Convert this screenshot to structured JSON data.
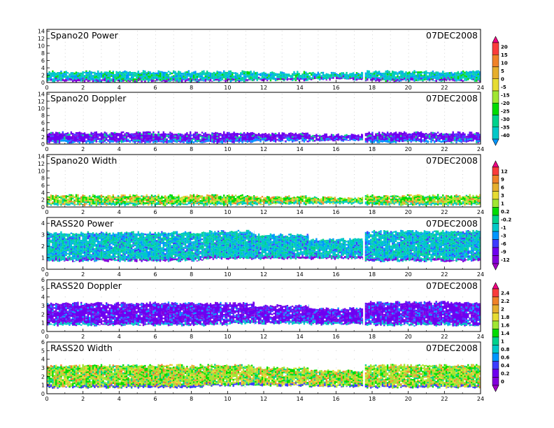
{
  "colormap": [
    "#a000c8",
    "#8200dc",
    "#6e00f0",
    "#3c3cff",
    "#0096ff",
    "#00c8c8",
    "#00d28c",
    "#00dc00",
    "#a0e632",
    "#e6dc32",
    "#e6af2d",
    "#f08228",
    "#fa3c3c",
    "#f00082"
  ],
  "chart_data": [
    {
      "type": "heatmap",
      "title": "Spano20 Power",
      "date": "07DEC2008",
      "xlim": [
        0,
        24
      ],
      "ylim": [
        0,
        14.5
      ],
      "xticks": [
        "0",
        "2",
        "4",
        "6",
        "8",
        "10",
        "12",
        "14",
        "16",
        "18",
        "20",
        "22",
        "24"
      ],
      "yticks": [
        "0",
        "2",
        "4",
        "6",
        "8",
        "10",
        "12",
        "14"
      ],
      "ytick_values": [
        0,
        2,
        4,
        6,
        8,
        10,
        12,
        14
      ],
      "colorbar": [
        "20",
        "15",
        "10",
        "5",
        "0",
        "-5",
        "-15",
        "-20",
        "-25",
        "-30",
        "-35",
        "-40"
      ],
      "segments": [
        [
          0,
          11.5,
          0.3,
          3.0
        ],
        [
          11.5,
          14.5,
          0.6,
          2.8
        ],
        [
          14.5,
          17.5,
          0.8,
          2.6
        ],
        [
          17.6,
          24,
          0.4,
          3.0
        ]
      ],
      "palette": [
        5,
        6,
        5,
        4,
        6,
        5,
        5,
        4,
        7
      ],
      "bottom_index": 1
    },
    {
      "type": "heatmap",
      "title": "Spano20 Doppler",
      "date": "07DEC2008",
      "xlim": [
        0,
        24
      ],
      "ylim": [
        0,
        14.5
      ],
      "xticks": [
        "0",
        "2",
        "4",
        "6",
        "8",
        "10",
        "12",
        "14",
        "16",
        "18",
        "20",
        "22",
        "24"
      ],
      "yticks": [
        "0",
        "2",
        "4",
        "6",
        "8",
        "10",
        "12",
        "14"
      ],
      "ytick_values": [
        0,
        2,
        4,
        6,
        8,
        10,
        12,
        14
      ],
      "segments": [
        [
          0,
          11.5,
          0.4,
          3.2
        ],
        [
          11.5,
          14.5,
          0.7,
          2.9
        ],
        [
          14.5,
          17.5,
          0.9,
          2.6
        ],
        [
          17.6,
          24,
          0.5,
          3.2
        ]
      ],
      "palette": [
        2,
        2,
        2,
        1,
        2,
        2,
        3,
        2,
        6
      ],
      "bottom_index": 4
    },
    {
      "type": "heatmap",
      "title": "Spano20 Width",
      "date": "07DEC2008",
      "xlim": [
        0,
        24
      ],
      "ylim": [
        0,
        14.5
      ],
      "xticks": [
        "0",
        "2",
        "4",
        "6",
        "8",
        "10",
        "12",
        "14",
        "16",
        "18",
        "20",
        "22",
        "24"
      ],
      "yticks": [
        "0",
        "2",
        "4",
        "6",
        "8",
        "10",
        "12",
        "14"
      ],
      "ytick_values": [
        0,
        2,
        4,
        6,
        8,
        10,
        12,
        14
      ],
      "colorbar": [
        "12",
        "9",
        "6",
        "3",
        "1",
        "0.2",
        "-0.2",
        "-1",
        "-3",
        "-6",
        "-9",
        "-12"
      ],
      "segments": [
        [
          0,
          11.5,
          0.5,
          3.2
        ],
        [
          11.5,
          14.5,
          0.7,
          2.9
        ],
        [
          14.5,
          17.5,
          0.9,
          2.6
        ],
        [
          17.6,
          24,
          0.5,
          3.2
        ]
      ],
      "palette": [
        7,
        8,
        9,
        7,
        10,
        8,
        6,
        11,
        7
      ],
      "bottom_index": 5
    },
    {
      "type": "heatmap",
      "title": "RASS20 Power",
      "date": "07DEC2008",
      "xlim": [
        0,
        24
      ],
      "ylim": [
        0,
        4.5
      ],
      "xticks": [
        "0",
        "2",
        "4",
        "6",
        "8",
        "10",
        "12",
        "14",
        "16",
        "18",
        "20",
        "22",
        "24"
      ],
      "yticks": [
        "0",
        "1",
        "2",
        "3",
        "4"
      ],
      "ytick_values": [
        0,
        1,
        2,
        3,
        4
      ],
      "segments": [
        [
          0,
          8.7,
          0.7,
          3.2
        ],
        [
          8.7,
          11.5,
          0.9,
          3.3
        ],
        [
          11.5,
          14.5,
          0.9,
          3.0
        ],
        [
          14.5,
          17.5,
          0.9,
          2.6
        ],
        [
          17.6,
          24,
          0.7,
          3.3
        ]
      ],
      "palette": [
        5,
        6,
        5,
        4,
        5,
        6,
        3,
        5,
        4
      ],
      "bottom_index": 1
    },
    {
      "type": "heatmap",
      "title": "RASS20 Doppler",
      "date": "07DEC2008",
      "xlim": [
        0,
        24
      ],
      "ylim": [
        0,
        6
      ],
      "xticks": [
        "0",
        "2",
        "4",
        "6",
        "8",
        "10",
        "12",
        "14",
        "16",
        "18",
        "20",
        "22",
        "24"
      ],
      "yticks": [
        "0",
        "1",
        "2",
        "3",
        "4",
        "5",
        "6"
      ],
      "ytick_values": [
        0,
        1,
        2,
        3,
        4,
        5,
        6
      ],
      "colorbar": [
        "2.4",
        "2.2",
        "2",
        "1.8",
        "1.6",
        "1.4",
        "1",
        "0.8",
        "0.6",
        "0.4",
        "0.2",
        "0"
      ],
      "segments": [
        [
          0,
          10,
          0.7,
          3.3
        ],
        [
          10,
          11.5,
          0.9,
          3.3
        ],
        [
          11.5,
          14.5,
          0.9,
          3.0
        ],
        [
          14.5,
          17.5,
          0.8,
          2.7
        ],
        [
          17.6,
          24,
          0.7,
          3.4
        ]
      ],
      "palette": [
        2,
        2,
        1,
        2,
        2,
        3,
        2,
        4,
        2
      ],
      "bottom_index": 5
    },
    {
      "type": "heatmap",
      "title": "RASS20 Width",
      "date": "07DEC2008",
      "xlim": [
        0,
        24
      ],
      "ylim": [
        0,
        6
      ],
      "xticks": [
        "0",
        "2",
        "4",
        "6",
        "8",
        "10",
        "12",
        "14",
        "16",
        "18",
        "20",
        "22",
        "24"
      ],
      "yticks": [
        "0",
        "1",
        "2",
        "3",
        "4",
        "5",
        "6"
      ],
      "ytick_values": [
        0,
        1,
        2,
        3,
        4,
        5,
        6
      ],
      "segments": [
        [
          0,
          8.7,
          0.7,
          3.3
        ],
        [
          8.7,
          11.5,
          0.9,
          3.3
        ],
        [
          11.5,
          14.5,
          0.9,
          3.0
        ],
        [
          14.5,
          17.5,
          0.8,
          2.7
        ],
        [
          17.6,
          24,
          0.7,
          3.3
        ]
      ],
      "palette": [
        7,
        8,
        9,
        10,
        8,
        7,
        11,
        6,
        8
      ],
      "bottom_index": 3
    }
  ]
}
